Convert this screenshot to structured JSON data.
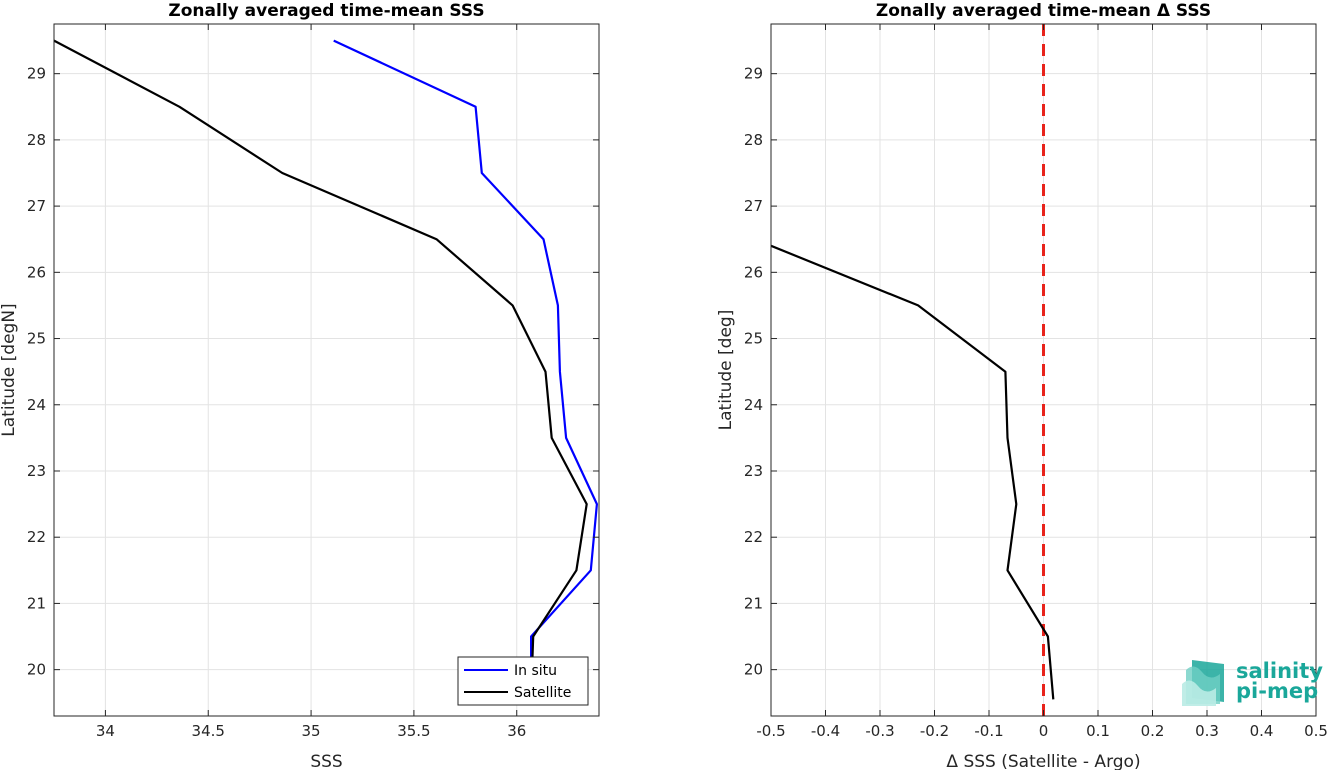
{
  "chart_data": [
    {
      "type": "line",
      "title": "Zonally averaged time-mean SSS",
      "xlabel": "SSS",
      "ylabel": "Latitude [degN]",
      "xlim": [
        33.75,
        36.4
      ],
      "ylim": [
        19.3,
        29.75
      ],
      "xticks": [
        34,
        34.5,
        35,
        35.5,
        36
      ],
      "yticks": [
        20,
        21,
        22,
        23,
        24,
        25,
        26,
        27,
        28,
        29
      ],
      "grid": true,
      "legend": "bottom-right",
      "series": [
        {
          "name": "In situ",
          "color": "#0000ff",
          "points": [
            [
              35.11,
              29.5
            ],
            [
              35.8,
              28.5
            ],
            [
              35.83,
              27.5
            ],
            [
              36.13,
              26.5
            ],
            [
              36.2,
              25.5
            ],
            [
              36.21,
              24.5
            ],
            [
              36.24,
              23.5
            ],
            [
              36.39,
              22.5
            ],
            [
              36.36,
              21.5
            ],
            [
              36.07,
              20.5
            ],
            [
              36.07,
              19.6
            ]
          ]
        },
        {
          "name": "Satellite",
          "color": "#000000",
          "points": [
            [
              33.75,
              29.5
            ],
            [
              34.36,
              28.5
            ],
            [
              34.86,
              27.5
            ],
            [
              35.61,
              26.5
            ],
            [
              35.98,
              25.5
            ],
            [
              36.14,
              24.5
            ],
            [
              36.17,
              23.5
            ],
            [
              36.34,
              22.5
            ],
            [
              36.29,
              21.5
            ],
            [
              36.08,
              20.5
            ],
            [
              36.07,
              19.6
            ]
          ]
        }
      ]
    },
    {
      "type": "line",
      "title": "Zonally averaged time-mean Δ SSS",
      "xlabel": "Δ SSS (Satellite - Argo)",
      "ylabel": "Latitude [deg]",
      "xlim": [
        -0.5,
        0.5
      ],
      "ylim": [
        19.3,
        29.75
      ],
      "xticks": [
        -0.5,
        -0.4,
        -0.3,
        -0.2,
        -0.1,
        0,
        0.1,
        0.2,
        0.3,
        0.4,
        0.5
      ],
      "yticks": [
        20,
        21,
        22,
        23,
        24,
        25,
        26,
        27,
        28,
        29
      ],
      "grid": true,
      "reference_line": {
        "x": 0,
        "color": "#e8231b",
        "style": "dashed"
      },
      "series": [
        {
          "color": "#000000",
          "points": [
            [
              -0.5,
              26.4
            ],
            [
              -0.23,
              25.5
            ],
            [
              -0.07,
              24.5
            ],
            [
              -0.066,
              23.5
            ],
            [
              -0.05,
              22.5
            ],
            [
              -0.066,
              21.5
            ],
            [
              0.008,
              20.5
            ],
            [
              0.018,
              19.55
            ]
          ]
        }
      ]
    }
  ],
  "logo": {
    "line1": "salinity",
    "line2": "pi-mep",
    "color": "#1aa79a"
  }
}
